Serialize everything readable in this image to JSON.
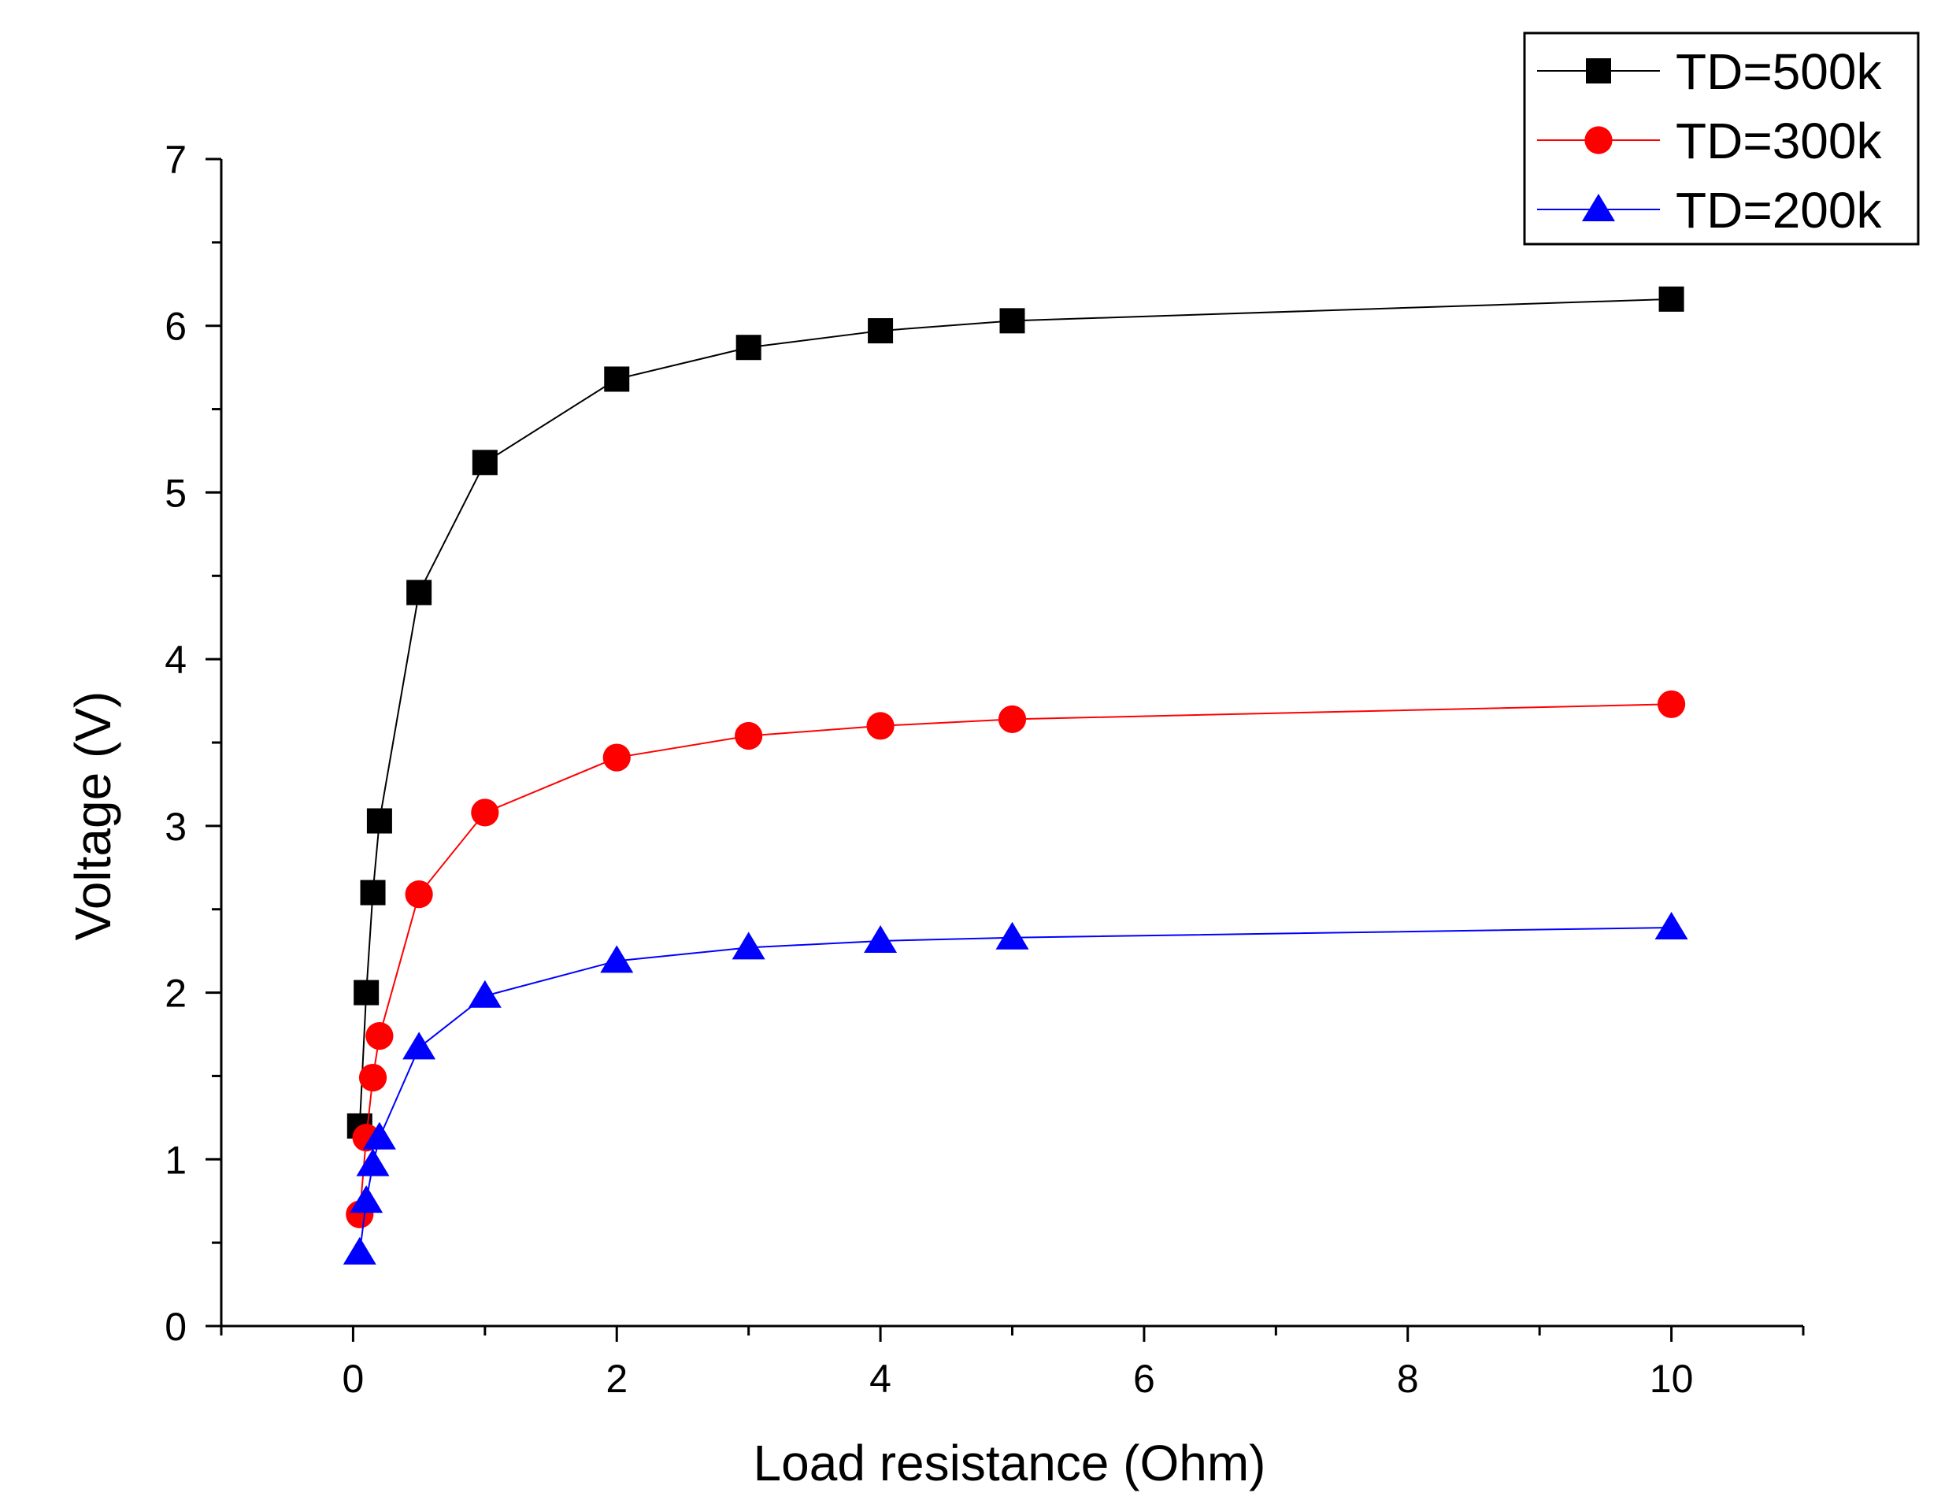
{
  "chart_data": {
    "type": "line",
    "title": "",
    "xlabel": "Load resistance (Ohm)",
    "ylabel": "Voltage (V)",
    "xlim": [
      -1,
      11
    ],
    "ylim": [
      0,
      7
    ],
    "x_ticks": [
      0,
      2,
      4,
      6,
      8,
      10
    ],
    "y_ticks": [
      0,
      1,
      2,
      3,
      4,
      5,
      6,
      7
    ],
    "x_tick_labels": [
      "0",
      "2",
      "4",
      "6",
      "8",
      "10"
    ],
    "y_tick_labels": [
      "0",
      "1",
      "2",
      "3",
      "4",
      "5",
      "6",
      "7"
    ],
    "grid": false,
    "legend_position": "top-right",
    "x": [
      0.05,
      0.1,
      0.15,
      0.2,
      0.5,
      1,
      2,
      3,
      4,
      5,
      10
    ],
    "series": [
      {
        "name": "TD=500k",
        "color": "#000000",
        "marker": "square",
        "values": [
          1.2,
          2.0,
          2.6,
          3.03,
          4.4,
          5.18,
          5.68,
          5.87,
          5.97,
          6.03,
          6.16
        ]
      },
      {
        "name": "TD=300k",
        "color": "#ff0000",
        "marker": "circle",
        "values": [
          0.67,
          1.13,
          1.49,
          1.74,
          2.59,
          3.08,
          3.41,
          3.54,
          3.6,
          3.64,
          3.73
        ]
      },
      {
        "name": "TD=200k",
        "color": "#0000ff",
        "marker": "triangle",
        "values": [
          0.44,
          0.75,
          0.97,
          1.13,
          1.67,
          1.98,
          2.19,
          2.27,
          2.31,
          2.33,
          2.39
        ]
      }
    ]
  }
}
